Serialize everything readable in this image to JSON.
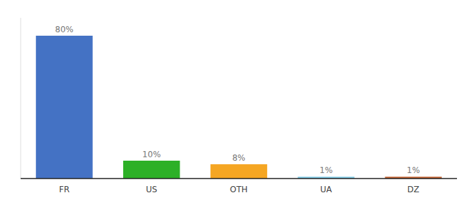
{
  "chart_data": {
    "type": "bar",
    "categories": [
      "FR",
      "US",
      "OTH",
      "UA",
      "DZ"
    ],
    "values": [
      80,
      10,
      8,
      1,
      1
    ],
    "value_labels": [
      "80%",
      "10%",
      "8%",
      "1%",
      "1%"
    ],
    "colors": [
      "#4472c4",
      "#2db027",
      "#f5a623",
      "#7ec8e3",
      "#c06030"
    ],
    "data_labels": true,
    "ylim": [
      0,
      90
    ],
    "tick_labels": "x",
    "grid": false
  }
}
